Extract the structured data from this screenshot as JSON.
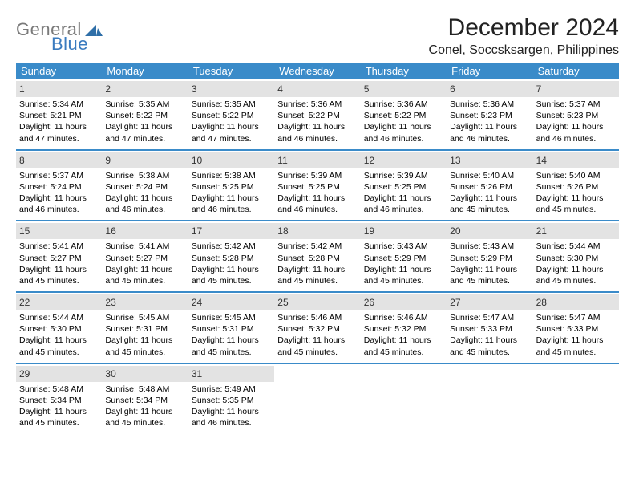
{
  "logo": {
    "gray": "General",
    "blue": "Blue"
  },
  "title": "December 2024",
  "location": "Conel, Soccsksargen, Philippines",
  "weekdays": [
    "Sunday",
    "Monday",
    "Tuesday",
    "Wednesday",
    "Thursday",
    "Friday",
    "Saturday"
  ],
  "colors": {
    "header_bar": "#3a8bc9",
    "daynum_bg": "#e3e3e3",
    "week_border": "#3a8bc9",
    "logo_gray": "#7a7a7a",
    "logo_blue": "#3a7bbf"
  },
  "weeks": [
    [
      {
        "n": "1",
        "sr": "Sunrise: 5:34 AM",
        "ss": "Sunset: 5:21 PM",
        "d1": "Daylight: 11 hours",
        "d2": "and 47 minutes."
      },
      {
        "n": "2",
        "sr": "Sunrise: 5:35 AM",
        "ss": "Sunset: 5:22 PM",
        "d1": "Daylight: 11 hours",
        "d2": "and 47 minutes."
      },
      {
        "n": "3",
        "sr": "Sunrise: 5:35 AM",
        "ss": "Sunset: 5:22 PM",
        "d1": "Daylight: 11 hours",
        "d2": "and 47 minutes."
      },
      {
        "n": "4",
        "sr": "Sunrise: 5:36 AM",
        "ss": "Sunset: 5:22 PM",
        "d1": "Daylight: 11 hours",
        "d2": "and 46 minutes."
      },
      {
        "n": "5",
        "sr": "Sunrise: 5:36 AM",
        "ss": "Sunset: 5:22 PM",
        "d1": "Daylight: 11 hours",
        "d2": "and 46 minutes."
      },
      {
        "n": "6",
        "sr": "Sunrise: 5:36 AM",
        "ss": "Sunset: 5:23 PM",
        "d1": "Daylight: 11 hours",
        "d2": "and 46 minutes."
      },
      {
        "n": "7",
        "sr": "Sunrise: 5:37 AM",
        "ss": "Sunset: 5:23 PM",
        "d1": "Daylight: 11 hours",
        "d2": "and 46 minutes."
      }
    ],
    [
      {
        "n": "8",
        "sr": "Sunrise: 5:37 AM",
        "ss": "Sunset: 5:24 PM",
        "d1": "Daylight: 11 hours",
        "d2": "and 46 minutes."
      },
      {
        "n": "9",
        "sr": "Sunrise: 5:38 AM",
        "ss": "Sunset: 5:24 PM",
        "d1": "Daylight: 11 hours",
        "d2": "and 46 minutes."
      },
      {
        "n": "10",
        "sr": "Sunrise: 5:38 AM",
        "ss": "Sunset: 5:25 PM",
        "d1": "Daylight: 11 hours",
        "d2": "and 46 minutes."
      },
      {
        "n": "11",
        "sr": "Sunrise: 5:39 AM",
        "ss": "Sunset: 5:25 PM",
        "d1": "Daylight: 11 hours",
        "d2": "and 46 minutes."
      },
      {
        "n": "12",
        "sr": "Sunrise: 5:39 AM",
        "ss": "Sunset: 5:25 PM",
        "d1": "Daylight: 11 hours",
        "d2": "and 46 minutes."
      },
      {
        "n": "13",
        "sr": "Sunrise: 5:40 AM",
        "ss": "Sunset: 5:26 PM",
        "d1": "Daylight: 11 hours",
        "d2": "and 45 minutes."
      },
      {
        "n": "14",
        "sr": "Sunrise: 5:40 AM",
        "ss": "Sunset: 5:26 PM",
        "d1": "Daylight: 11 hours",
        "d2": "and 45 minutes."
      }
    ],
    [
      {
        "n": "15",
        "sr": "Sunrise: 5:41 AM",
        "ss": "Sunset: 5:27 PM",
        "d1": "Daylight: 11 hours",
        "d2": "and 45 minutes."
      },
      {
        "n": "16",
        "sr": "Sunrise: 5:41 AM",
        "ss": "Sunset: 5:27 PM",
        "d1": "Daylight: 11 hours",
        "d2": "and 45 minutes."
      },
      {
        "n": "17",
        "sr": "Sunrise: 5:42 AM",
        "ss": "Sunset: 5:28 PM",
        "d1": "Daylight: 11 hours",
        "d2": "and 45 minutes."
      },
      {
        "n": "18",
        "sr": "Sunrise: 5:42 AM",
        "ss": "Sunset: 5:28 PM",
        "d1": "Daylight: 11 hours",
        "d2": "and 45 minutes."
      },
      {
        "n": "19",
        "sr": "Sunrise: 5:43 AM",
        "ss": "Sunset: 5:29 PM",
        "d1": "Daylight: 11 hours",
        "d2": "and 45 minutes."
      },
      {
        "n": "20",
        "sr": "Sunrise: 5:43 AM",
        "ss": "Sunset: 5:29 PM",
        "d1": "Daylight: 11 hours",
        "d2": "and 45 minutes."
      },
      {
        "n": "21",
        "sr": "Sunrise: 5:44 AM",
        "ss": "Sunset: 5:30 PM",
        "d1": "Daylight: 11 hours",
        "d2": "and 45 minutes."
      }
    ],
    [
      {
        "n": "22",
        "sr": "Sunrise: 5:44 AM",
        "ss": "Sunset: 5:30 PM",
        "d1": "Daylight: 11 hours",
        "d2": "and 45 minutes."
      },
      {
        "n": "23",
        "sr": "Sunrise: 5:45 AM",
        "ss": "Sunset: 5:31 PM",
        "d1": "Daylight: 11 hours",
        "d2": "and 45 minutes."
      },
      {
        "n": "24",
        "sr": "Sunrise: 5:45 AM",
        "ss": "Sunset: 5:31 PM",
        "d1": "Daylight: 11 hours",
        "d2": "and 45 minutes."
      },
      {
        "n": "25",
        "sr": "Sunrise: 5:46 AM",
        "ss": "Sunset: 5:32 PM",
        "d1": "Daylight: 11 hours",
        "d2": "and 45 minutes."
      },
      {
        "n": "26",
        "sr": "Sunrise: 5:46 AM",
        "ss": "Sunset: 5:32 PM",
        "d1": "Daylight: 11 hours",
        "d2": "and 45 minutes."
      },
      {
        "n": "27",
        "sr": "Sunrise: 5:47 AM",
        "ss": "Sunset: 5:33 PM",
        "d1": "Daylight: 11 hours",
        "d2": "and 45 minutes."
      },
      {
        "n": "28",
        "sr": "Sunrise: 5:47 AM",
        "ss": "Sunset: 5:33 PM",
        "d1": "Daylight: 11 hours",
        "d2": "and 45 minutes."
      }
    ],
    [
      {
        "n": "29",
        "sr": "Sunrise: 5:48 AM",
        "ss": "Sunset: 5:34 PM",
        "d1": "Daylight: 11 hours",
        "d2": "and 45 minutes."
      },
      {
        "n": "30",
        "sr": "Sunrise: 5:48 AM",
        "ss": "Sunset: 5:34 PM",
        "d1": "Daylight: 11 hours",
        "d2": "and 45 minutes."
      },
      {
        "n": "31",
        "sr": "Sunrise: 5:49 AM",
        "ss": "Sunset: 5:35 PM",
        "d1": "Daylight: 11 hours",
        "d2": "and 46 minutes."
      },
      null,
      null,
      null,
      null
    ]
  ]
}
